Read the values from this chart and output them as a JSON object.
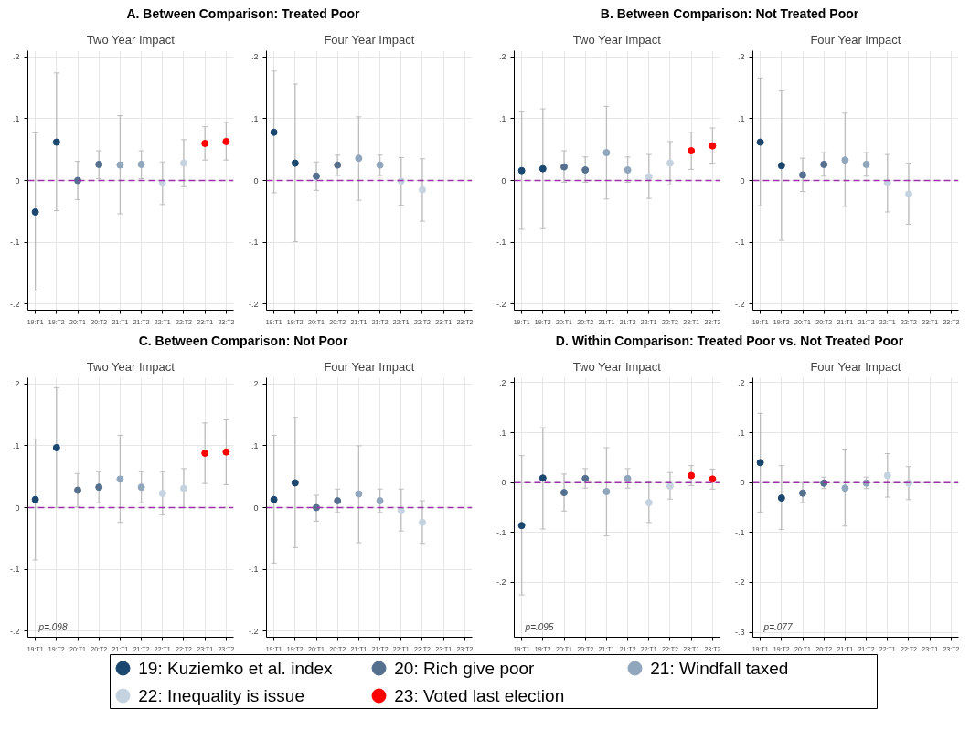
{
  "chart_data": [
    {
      "type": "scatter",
      "title": "A. Between Comparison: Treated Poor",
      "subtitle": "Two Year Impact",
      "categories": [
        "19:T1",
        "19:T2",
        "20:T1",
        "20:T2",
        "21:T1",
        "21:T2",
        "22:T1",
        "22:T2",
        "23:T1",
        "23:T2"
      ],
      "ylim": [
        -0.21,
        0.21
      ],
      "yticks": [
        {
          "value": -0.2,
          "label": "-.2"
        },
        {
          "value": -0.1,
          "label": "-.1"
        },
        0,
        {
          "value": 0.1,
          "label": ".1"
        },
        {
          "value": 0.2,
          "label": ".2"
        }
      ],
      "grid": true,
      "marker": "circle",
      "legend": "bottom",
      "ref_lines": [
        {
          "axis": "y",
          "value": 0,
          "color": "#9b30a8",
          "line_style": "dashed"
        }
      ],
      "series": [
        {
          "name": "19: Kuziemko et al. index",
          "color": "#1a476f",
          "values": [
            -0.051,
            0.062,
            null,
            null,
            null,
            null,
            null,
            null,
            null,
            null
          ],
          "errors": [
            [
              -0.179,
              0.077
            ],
            [
              -0.049,
              0.174
            ],
            null,
            null,
            null,
            null,
            null,
            null,
            null,
            null
          ]
        },
        {
          "name": "20: Rich give poor",
          "color": "#55708f",
          "values": [
            null,
            null,
            0.0,
            0.026,
            null,
            null,
            null,
            null,
            null,
            null
          ],
          "errors": [
            null,
            null,
            [
              -0.031,
              0.031
            ],
            [
              0.003,
              0.048
            ],
            null,
            null,
            null,
            null,
            null,
            null
          ]
        },
        {
          "name": "21: Windfall taxed",
          "color": "#8fa6bd",
          "values": [
            null,
            null,
            null,
            null,
            0.025,
            0.026,
            null,
            null,
            null,
            null
          ],
          "errors": [
            null,
            null,
            null,
            null,
            [
              -0.054,
              0.105
            ],
            [
              0.003,
              0.048
            ],
            null,
            null,
            null,
            null
          ]
        },
        {
          "name": "22: Inequality is issue",
          "color": "#c5d3e0",
          "values": [
            null,
            null,
            null,
            null,
            null,
            null,
            -0.004,
            0.028,
            null,
            null
          ],
          "errors": [
            null,
            null,
            null,
            null,
            null,
            null,
            [
              -0.039,
              0.03
            ],
            [
              -0.01,
              0.066
            ],
            null,
            null
          ]
        },
        {
          "name": "23: Voted last election",
          "color": "#ff0000",
          "values": [
            null,
            null,
            null,
            null,
            null,
            null,
            null,
            null,
            0.06,
            0.063
          ],
          "errors": [
            null,
            null,
            null,
            null,
            null,
            null,
            null,
            null,
            [
              0.033,
              0.087
            ],
            [
              0.033,
              0.094
            ]
          ]
        }
      ]
    },
    {
      "type": "scatter",
      "subtitle": "Four Year Impact",
      "categories": [
        "19:T1",
        "19:T2",
        "20:T1",
        "20:T2",
        "21:T1",
        "21:T2",
        "22:T1",
        "22:T2",
        "23:T1",
        "23:T2"
      ],
      "ylim": [
        -0.21,
        0.21
      ],
      "yticks": [
        {
          "value": -0.2,
          "label": "-.2"
        },
        {
          "value": -0.1,
          "label": "-.1"
        },
        0,
        {
          "value": 0.1,
          "label": ".1"
        },
        {
          "value": 0.2,
          "label": ".2"
        }
      ],
      "grid": true,
      "marker": "circle",
      "ref_lines": [
        {
          "axis": "y",
          "value": 0,
          "color": "#9b30a8",
          "line_style": "dashed"
        }
      ],
      "series": [
        {
          "color": "#1a476f",
          "values": [
            0.078,
            0.028,
            null,
            null,
            null,
            null,
            null,
            null,
            null,
            null
          ],
          "errors": [
            [
              -0.02,
              0.177
            ],
            [
              -0.099,
              0.156
            ],
            null,
            null,
            null,
            null,
            null,
            null,
            null,
            null
          ]
        },
        {
          "color": "#55708f",
          "values": [
            null,
            null,
            0.007,
            0.025,
            null,
            null,
            null,
            null,
            null,
            null
          ],
          "errors": [
            null,
            null,
            [
              -0.016,
              0.03
            ],
            [
              0.008,
              0.041
            ],
            null,
            null,
            null,
            null,
            null,
            null
          ]
        },
        {
          "color": "#8fa6bd",
          "values": [
            null,
            null,
            null,
            null,
            0.036,
            0.025,
            null,
            null,
            null,
            null
          ],
          "errors": [
            null,
            null,
            null,
            null,
            [
              -0.032,
              0.103
            ],
            [
              0.008,
              0.041
            ],
            null,
            null,
            null,
            null
          ]
        },
        {
          "color": "#c5d3e0",
          "values": [
            null,
            null,
            null,
            null,
            null,
            null,
            -0.001,
            -0.015,
            null,
            null
          ],
          "errors": [
            null,
            null,
            null,
            null,
            null,
            null,
            [
              -0.04,
              0.037
            ],
            [
              -0.066,
              0.035
            ],
            null,
            null
          ]
        }
      ]
    },
    {
      "type": "scatter",
      "title": "B. Between Comparison: Not Treated Poor",
      "subtitle": "Two Year Impact",
      "categories": [
        "19:T1",
        "19:T2",
        "20:T1",
        "20:T2",
        "21:T1",
        "21:T2",
        "22:T1",
        "22:T2",
        "23:T1",
        "23:T2"
      ],
      "ylim": [
        -0.21,
        0.21
      ],
      "yticks": [
        {
          "value": -0.2,
          "label": "-.2"
        },
        {
          "value": -0.1,
          "label": "-.1"
        },
        0,
        {
          "value": 0.1,
          "label": ".1"
        },
        {
          "value": 0.2,
          "label": ".2"
        }
      ],
      "grid": true,
      "marker": "circle",
      "ref_lines": [
        {
          "axis": "y",
          "value": 0,
          "color": "#9b30a8",
          "line_style": "dashed"
        }
      ],
      "series": [
        {
          "color": "#1a476f",
          "values": [
            0.016,
            0.019,
            null,
            null,
            null,
            null,
            null,
            null,
            null,
            null
          ],
          "errors": [
            [
              -0.079,
              0.111
            ],
            [
              -0.078,
              0.116
            ],
            null,
            null,
            null,
            null,
            null,
            null,
            null,
            null
          ]
        },
        {
          "color": "#55708f",
          "values": [
            null,
            null,
            0.022,
            0.017,
            null,
            null,
            null,
            null,
            null,
            null
          ],
          "errors": [
            null,
            null,
            [
              -0.003,
              0.048
            ],
            [
              -0.003,
              0.038
            ],
            null,
            null,
            null,
            null,
            null,
            null
          ]
        },
        {
          "color": "#8fa6bd",
          "values": [
            null,
            null,
            null,
            null,
            0.045,
            0.017,
            null,
            null,
            null,
            null
          ],
          "errors": [
            null,
            null,
            null,
            null,
            [
              -0.03,
              0.12
            ],
            [
              -0.003,
              0.038
            ],
            null,
            null,
            null,
            null
          ]
        },
        {
          "color": "#c5d3e0",
          "values": [
            null,
            null,
            null,
            null,
            null,
            null,
            0.006,
            0.028,
            null,
            null
          ],
          "errors": [
            null,
            null,
            null,
            null,
            null,
            null,
            [
              -0.029,
              0.042
            ],
            [
              -0.007,
              0.063
            ],
            null,
            null
          ]
        },
        {
          "color": "#ff0000",
          "values": [
            null,
            null,
            null,
            null,
            null,
            null,
            null,
            null,
            0.048,
            0.056
          ],
          "errors": [
            null,
            null,
            null,
            null,
            null,
            null,
            null,
            null,
            [
              0.018,
              0.078
            ],
            [
              0.028,
              0.085
            ]
          ]
        }
      ]
    },
    {
      "type": "scatter",
      "subtitle": "Four Year Impact",
      "categories": [
        "19:T1",
        "19:T2",
        "20:T1",
        "20:T2",
        "21:T1",
        "21:T2",
        "22:T1",
        "22:T2",
        "23:T1",
        "23:T2"
      ],
      "ylim": [
        -0.21,
        0.21
      ],
      "yticks": [
        {
          "value": -0.2,
          "label": "-.2"
        },
        {
          "value": -0.1,
          "label": "-.1"
        },
        0,
        {
          "value": 0.1,
          "label": ".1"
        },
        {
          "value": 0.2,
          "label": ".2"
        }
      ],
      "grid": true,
      "marker": "circle",
      "ref_lines": [
        {
          "axis": "y",
          "value": 0,
          "color": "#9b30a8",
          "line_style": "dashed"
        }
      ],
      "series": [
        {
          "color": "#1a476f",
          "values": [
            0.062,
            0.024,
            null,
            null,
            null,
            null,
            null,
            null,
            null,
            null
          ],
          "errors": [
            [
              -0.041,
              0.166
            ],
            [
              -0.097,
              0.145
            ],
            null,
            null,
            null,
            null,
            null,
            null,
            null,
            null
          ]
        },
        {
          "color": "#55708f",
          "values": [
            null,
            null,
            0.009,
            0.026,
            null,
            null,
            null,
            null,
            null,
            null
          ],
          "errors": [
            null,
            null,
            [
              -0.018,
              0.036
            ],
            [
              0.007,
              0.045
            ],
            null,
            null,
            null,
            null,
            null,
            null
          ]
        },
        {
          "color": "#8fa6bd",
          "values": [
            null,
            null,
            null,
            null,
            0.033,
            0.026,
            null,
            null,
            null,
            null
          ],
          "errors": [
            null,
            null,
            null,
            null,
            [
              -0.042,
              0.109
            ],
            [
              0.007,
              0.045
            ],
            null,
            null,
            null,
            null
          ]
        },
        {
          "color": "#c5d3e0",
          "values": [
            null,
            null,
            null,
            null,
            null,
            null,
            -0.004,
            -0.022,
            null,
            null
          ],
          "errors": [
            null,
            null,
            null,
            null,
            null,
            null,
            [
              -0.051,
              0.042
            ],
            [
              -0.071,
              0.028
            ],
            null,
            null
          ]
        }
      ]
    },
    {
      "type": "scatter",
      "title": "C. Between Comparison: Not Poor",
      "subtitle": "Two Year Impact",
      "categories": [
        "19:T1",
        "19:T2",
        "20:T1",
        "20:T2",
        "21:T1",
        "21:T2",
        "22:T1",
        "22:T2",
        "23:T1",
        "23:T2"
      ],
      "ylim": [
        -0.21,
        0.21
      ],
      "yticks": [
        {
          "value": -0.2,
          "label": "-.2"
        },
        {
          "value": -0.1,
          "label": "-.1"
        },
        0,
        {
          "value": 0.1,
          "label": ".1"
        },
        {
          "value": 0.2,
          "label": ".2"
        }
      ],
      "grid": true,
      "marker": "circle",
      "ref_lines": [
        {
          "axis": "y",
          "value": 0,
          "color": "#9b30a8",
          "line_style": "dashed"
        }
      ],
      "annotations": [
        "p=.098"
      ],
      "series": [
        {
          "color": "#1a476f",
          "values": [
            0.013,
            0.097,
            null,
            null,
            null,
            null,
            null,
            null,
            null,
            null
          ],
          "errors": [
            [
              -0.085,
              0.111
            ],
            [
              0.0,
              0.194
            ],
            null,
            null,
            null,
            null,
            null,
            null,
            null,
            null
          ]
        },
        {
          "color": "#55708f",
          "values": [
            null,
            null,
            0.028,
            0.033,
            null,
            null,
            null,
            null,
            null,
            null
          ],
          "errors": [
            null,
            null,
            [
              0.001,
              0.055
            ],
            [
              0.008,
              0.058
            ],
            null,
            null,
            null,
            null,
            null,
            null
          ]
        },
        {
          "color": "#8fa6bd",
          "values": [
            null,
            null,
            null,
            null,
            0.046,
            0.033,
            null,
            null,
            null,
            null
          ],
          "errors": [
            null,
            null,
            null,
            null,
            [
              -0.024,
              0.117
            ],
            [
              0.008,
              0.058
            ],
            null,
            null,
            null,
            null
          ]
        },
        {
          "color": "#c5d3e0",
          "values": [
            null,
            null,
            null,
            null,
            null,
            null,
            0.023,
            0.031,
            null,
            null
          ],
          "errors": [
            null,
            null,
            null,
            null,
            null,
            null,
            [
              -0.012,
              0.058
            ],
            [
              0.0,
              0.063
            ],
            null,
            null
          ]
        },
        {
          "color": "#ff0000",
          "values": [
            null,
            null,
            null,
            null,
            null,
            null,
            null,
            null,
            0.088,
            0.09
          ],
          "errors": [
            null,
            null,
            null,
            null,
            null,
            null,
            null,
            null,
            [
              0.039,
              0.137
            ],
            [
              0.037,
              0.142
            ]
          ]
        }
      ]
    },
    {
      "type": "scatter",
      "subtitle": "Four Year Impact",
      "categories": [
        "19:T1",
        "19:T2",
        "20:T1",
        "20:T2",
        "21:T1",
        "21:T2",
        "22:T1",
        "22:T2",
        "23:T1",
        "23:T2"
      ],
      "ylim": [
        -0.21,
        0.21
      ],
      "yticks": [
        {
          "value": -0.2,
          "label": "-.2"
        },
        {
          "value": -0.1,
          "label": "-.1"
        },
        0,
        {
          "value": 0.1,
          "label": ".1"
        },
        {
          "value": 0.2,
          "label": ".2"
        }
      ],
      "grid": true,
      "marker": "circle",
      "ref_lines": [
        {
          "axis": "y",
          "value": 0,
          "color": "#9b30a8",
          "line_style": "dashed"
        }
      ],
      "series": [
        {
          "color": "#1a476f",
          "values": [
            0.013,
            0.04,
            null,
            null,
            null,
            null,
            null,
            null,
            null,
            null
          ],
          "errors": [
            [
              -0.09,
              0.117
            ],
            [
              -0.065,
              0.146
            ],
            null,
            null,
            null,
            null,
            null,
            null,
            null,
            null
          ]
        },
        {
          "color": "#55708f",
          "values": [
            null,
            null,
            0.0,
            0.011,
            null,
            null,
            null,
            null,
            null,
            null
          ],
          "errors": [
            null,
            null,
            [
              -0.022,
              0.02
            ],
            [
              -0.008,
              0.03
            ],
            null,
            null,
            null,
            null,
            null,
            null
          ]
        },
        {
          "color": "#8fa6bd",
          "values": [
            null,
            null,
            null,
            null,
            0.022,
            0.011,
            null,
            null,
            null,
            null
          ],
          "errors": [
            null,
            null,
            null,
            null,
            [
              -0.057,
              0.1
            ],
            [
              -0.008,
              0.03
            ],
            null,
            null,
            null,
            null
          ]
        },
        {
          "color": "#c5d3e0",
          "values": [
            null,
            null,
            null,
            null,
            null,
            null,
            -0.005,
            -0.024,
            null,
            null
          ],
          "errors": [
            null,
            null,
            null,
            null,
            null,
            null,
            [
              -0.038,
              0.03
            ],
            [
              -0.058,
              0.011
            ],
            null,
            null
          ]
        }
      ]
    },
    {
      "type": "scatter",
      "title": "D. Within Comparison: Treated Poor vs. Not Treated Poor",
      "subtitle": "Two Year Impact",
      "categories": [
        "19:T1",
        "19:T2",
        "20:T1",
        "20:T2",
        "21:T1",
        "21:T2",
        "22:T1",
        "22:T2",
        "23:T1",
        "23:T2"
      ],
      "ylim": [
        -0.31,
        0.21
      ],
      "yticks": [
        {
          "value": -0.2,
          "label": "-.2"
        },
        {
          "value": -0.1,
          "label": "-.1"
        },
        0,
        {
          "value": 0.1,
          "label": ".1"
        },
        {
          "value": 0.2,
          "label": ".2"
        }
      ],
      "grid": true,
      "marker": "circle",
      "ref_lines": [
        {
          "axis": "y",
          "value": 0,
          "color": "#9b30a8",
          "line_style": "dashed"
        }
      ],
      "annotations": [
        "p=.095"
      ],
      "series": [
        {
          "color": "#1a476f",
          "values": [
            -0.086,
            0.009,
            null,
            null,
            null,
            null,
            null,
            null,
            null,
            null
          ],
          "errors": [
            [
              -0.225,
              0.054
            ],
            [
              -0.093,
              0.11
            ],
            null,
            null,
            null,
            null,
            null,
            null,
            null,
            null
          ]
        },
        {
          "color": "#55708f",
          "values": [
            null,
            null,
            -0.02,
            0.008,
            null,
            null,
            null,
            null,
            null,
            null
          ],
          "errors": [
            null,
            null,
            [
              -0.057,
              0.017
            ],
            [
              -0.011,
              0.028
            ],
            null,
            null,
            null,
            null,
            null,
            null
          ]
        },
        {
          "color": "#8fa6bd",
          "values": [
            null,
            null,
            null,
            null,
            -0.018,
            0.008,
            null,
            null,
            null,
            null
          ],
          "errors": [
            null,
            null,
            null,
            null,
            [
              -0.107,
              0.07
            ],
            [
              -0.011,
              0.028
            ],
            null,
            null,
            null,
            null
          ]
        },
        {
          "color": "#c5d3e0",
          "values": [
            null,
            null,
            null,
            null,
            null,
            null,
            -0.04,
            -0.007,
            null,
            null
          ],
          "errors": [
            null,
            null,
            null,
            null,
            null,
            null,
            [
              -0.08,
              0.001
            ],
            [
              -0.033,
              0.02
            ],
            null,
            null
          ]
        },
        {
          "color": "#ff0000",
          "values": [
            null,
            null,
            null,
            null,
            null,
            null,
            null,
            null,
            0.014,
            0.007
          ],
          "errors": [
            null,
            null,
            null,
            null,
            null,
            null,
            null,
            null,
            [
              -0.006,
              0.034
            ],
            [
              -0.013,
              0.027
            ]
          ]
        }
      ]
    },
    {
      "type": "scatter",
      "subtitle": "Four Year Impact",
      "categories": [
        "19:T1",
        "19:T2",
        "20:T1",
        "20:T2",
        "21:T1",
        "21:T2",
        "22:T1",
        "22:T2",
        "23:T1",
        "23:T2"
      ],
      "ylim": [
        -0.31,
        0.21
      ],
      "yticks": [
        {
          "value": -0.3,
          "label": "-.3"
        },
        {
          "value": -0.2,
          "label": "-.2"
        },
        {
          "value": -0.1,
          "label": "-.1"
        },
        0,
        {
          "value": 0.1,
          "label": ".1"
        },
        {
          "value": 0.2,
          "label": ".2"
        }
      ],
      "grid": true,
      "marker": "circle",
      "ref_lines": [
        {
          "axis": "y",
          "value": 0,
          "color": "#9b30a8",
          "line_style": "dashed"
        }
      ],
      "annotations": [
        "p=.077"
      ],
      "series": [
        {
          "color": "#1a476f",
          "values": [
            0.04,
            -0.031,
            null,
            null,
            null,
            null,
            null,
            null,
            null,
            null
          ],
          "errors": [
            [
              -0.059,
              0.139
            ],
            [
              -0.094,
              0.034
            ],
            null,
            null,
            null,
            null,
            null,
            null,
            null,
            null
          ]
        },
        {
          "color": "#55708f",
          "values": [
            null,
            null,
            -0.021,
            -0.001,
            null,
            null,
            null,
            null,
            null,
            null
          ],
          "errors": [
            null,
            null,
            [
              -0.04,
              0.0
            ],
            [
              -0.012,
              0.011
            ],
            null,
            null,
            null,
            null,
            null,
            null
          ]
        },
        {
          "color": "#8fa6bd",
          "values": [
            null,
            null,
            null,
            null,
            -0.011,
            -0.001,
            null,
            null,
            null,
            null
          ],
          "errors": [
            null,
            null,
            null,
            null,
            [
              -0.087,
              0.067
            ],
            [
              -0.012,
              0.011
            ],
            null,
            null,
            null,
            null
          ]
        },
        {
          "color": "#c5d3e0",
          "values": [
            null,
            null,
            null,
            null,
            null,
            null,
            0.014,
            -0.001,
            null,
            null
          ],
          "errors": [
            null,
            null,
            null,
            null,
            null,
            null,
            [
              -0.029,
              0.058
            ],
            [
              -0.034,
              0.032
            ],
            null,
            null
          ]
        }
      ]
    }
  ]
}
